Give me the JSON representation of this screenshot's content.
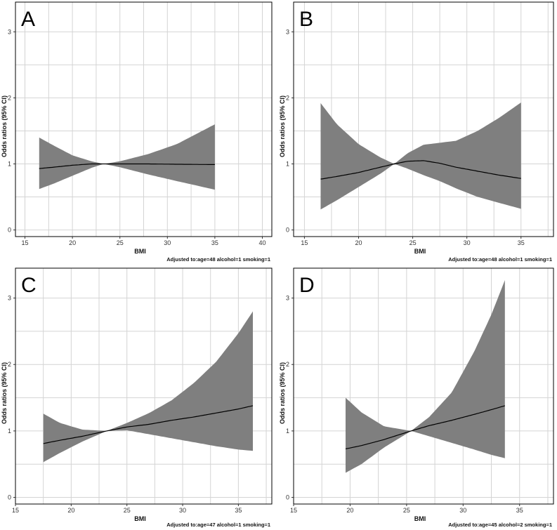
{
  "colors": {
    "band": "#7f7f7f",
    "line": "#000000",
    "grid": "#d4d4d4",
    "frame": "#000000"
  },
  "chart_data": [
    {
      "type": "area",
      "panel": "A",
      "xlabel": "BMI",
      "ylabel": "Odds ratios (95% CI)",
      "xlim": [
        14,
        41
      ],
      "ylim": [
        -0.1,
        3.45
      ],
      "xticks": [
        15,
        20,
        25,
        30,
        35,
        40
      ],
      "yticks": [
        0,
        1,
        2,
        3
      ],
      "note": "Adjusted to:age=48 alcohol=1 smoking=1",
      "x": [
        16.5,
        18,
        20,
        22,
        23.3,
        25,
        28,
        31,
        35
      ],
      "or": [
        0.93,
        0.95,
        0.98,
        1.0,
        1.0,
        1.0,
        1.0,
        0.995,
        0.99
      ],
      "lower": [
        0.62,
        0.7,
        0.82,
        0.94,
        1.0,
        0.95,
        0.84,
        0.74,
        0.61
      ],
      "upper": [
        1.4,
        1.28,
        1.13,
        1.04,
        1.0,
        1.04,
        1.15,
        1.3,
        1.6
      ]
    },
    {
      "type": "area",
      "panel": "B",
      "xlabel": "BMI",
      "ylabel": "Odds ratios (95% CI)",
      "xlim": [
        14,
        38
      ],
      "ylim": [
        -0.1,
        3.45
      ],
      "xticks": [
        15,
        20,
        25,
        30,
        35
      ],
      "yticks": [
        0,
        1,
        2,
        3
      ],
      "note": "Adjusted to:age=48 alcohol=1 smoking=1",
      "x": [
        16.5,
        18,
        20,
        22,
        23.3,
        24.5,
        26,
        27.5,
        29,
        31,
        33,
        35
      ],
      "or": [
        0.77,
        0.81,
        0.87,
        0.95,
        1.0,
        1.04,
        1.05,
        1.01,
        0.95,
        0.89,
        0.83,
        0.78
      ],
      "lower": [
        0.31,
        0.45,
        0.65,
        0.85,
        1.0,
        0.93,
        0.83,
        0.74,
        0.63,
        0.5,
        0.41,
        0.32
      ],
      "upper": [
        1.92,
        1.6,
        1.3,
        1.1,
        1.0,
        1.16,
        1.29,
        1.32,
        1.35,
        1.5,
        1.7,
        1.93
      ]
    },
    {
      "type": "area",
      "panel": "C",
      "xlabel": "BMI",
      "ylabel": "Odds ratios (95% CI)",
      "xlim": [
        15,
        38
      ],
      "ylim": [
        -0.1,
        3.45
      ],
      "xticks": [
        15,
        20,
        25,
        30,
        35
      ],
      "yticks": [
        0,
        1,
        2,
        3
      ],
      "note": "Adjusted to:age=47 alcohol=1 smoking=1",
      "x": [
        17.5,
        19,
        21,
        23.2,
        25,
        27,
        29,
        31,
        33,
        35,
        36.3
      ],
      "or": [
        0.81,
        0.86,
        0.92,
        1.0,
        1.06,
        1.1,
        1.16,
        1.21,
        1.27,
        1.33,
        1.38
      ],
      "lower": [
        0.53,
        0.67,
        0.84,
        1.0,
        1.01,
        0.95,
        0.89,
        0.83,
        0.77,
        0.72,
        0.7
      ],
      "upper": [
        1.26,
        1.12,
        1.02,
        1.0,
        1.12,
        1.27,
        1.46,
        1.72,
        2.04,
        2.47,
        2.8
      ]
    },
    {
      "type": "area",
      "panel": "D",
      "xlabel": "BMI",
      "ylabel": "Odds ratios (95% CI)",
      "xlim": [
        15,
        38
      ],
      "ylim": [
        -0.1,
        3.45
      ],
      "xticks": [
        15,
        20,
        25,
        30,
        35
      ],
      "yticks": [
        0,
        1,
        2,
        3
      ],
      "note": "Adjusted to:age=45 alcohol=2 smoking=1",
      "x": [
        19.6,
        21,
        23,
        25.4,
        27,
        29,
        31,
        32.5,
        33.7
      ],
      "or": [
        0.73,
        0.78,
        0.87,
        1.0,
        1.08,
        1.16,
        1.25,
        1.32,
        1.38
      ],
      "lower": [
        0.37,
        0.5,
        0.75,
        1.0,
        0.92,
        0.82,
        0.72,
        0.64,
        0.59
      ],
      "upper": [
        1.5,
        1.28,
        1.07,
        1.0,
        1.21,
        1.58,
        2.2,
        2.75,
        3.27
      ]
    }
  ]
}
